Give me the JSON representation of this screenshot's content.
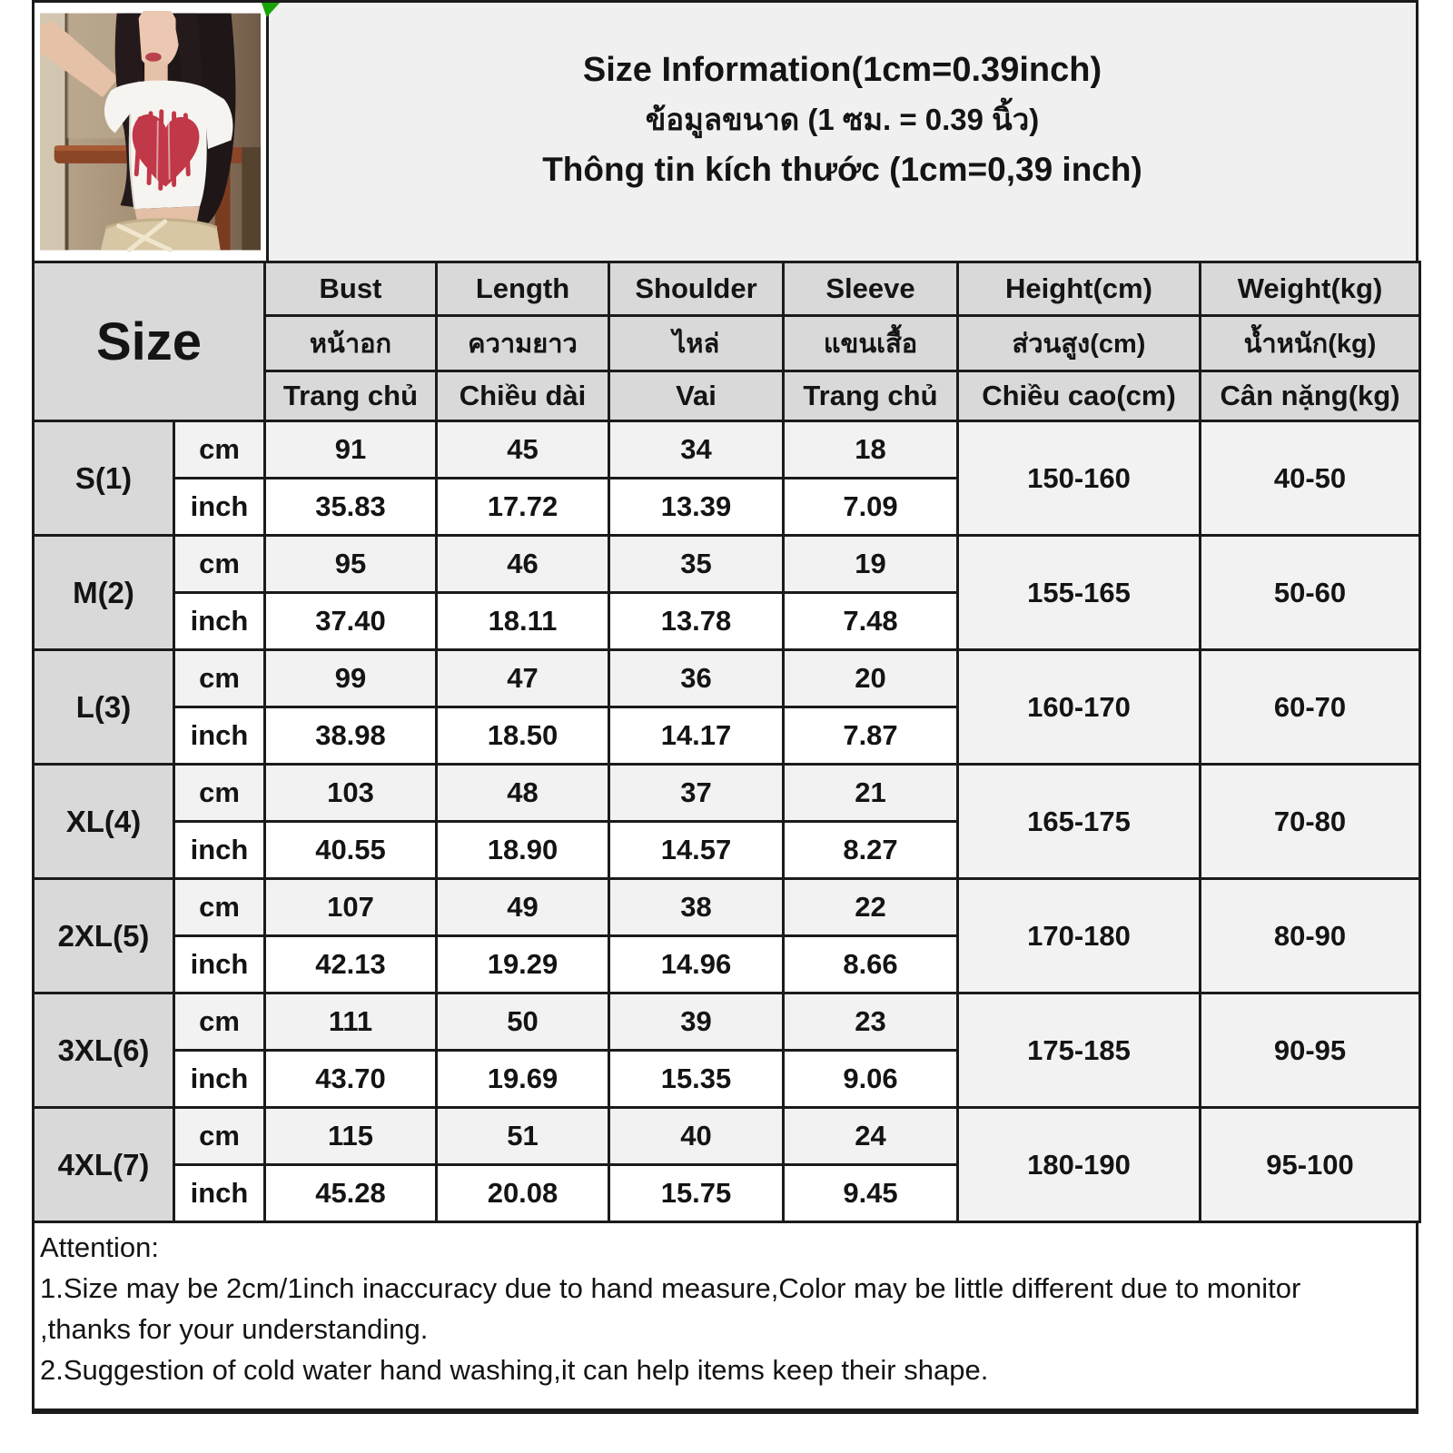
{
  "title": {
    "line1": "Size Information(1cm=0.39inch)",
    "line2": "ข้อมูลขนาด (1 ซม. = 0.39 นิ้ว)",
    "line3": "Thông tin kích thước (1cm=0,39 inch)"
  },
  "photo": {
    "label": "model-wearing-white-crop-top-with-red-heart"
  },
  "table": {
    "size_header": "Size",
    "columns": [
      {
        "en": "Bust",
        "th": "หน้าอก",
        "vi": "Trang chủ"
      },
      {
        "en": "Length",
        "th": "ความยาว",
        "vi": "Chiều dài"
      },
      {
        "en": "Shoulder",
        "th": "ไหล่",
        "vi": "Vai"
      },
      {
        "en": "Sleeve",
        "th": "แขนเสื้อ",
        "vi": "Trang chủ"
      },
      {
        "en": "Height(cm)",
        "th": "ส่วนสูง(cm)",
        "vi": "Chiều cao(cm)"
      },
      {
        "en": "Weight(kg)",
        "th": "น้ำหนัก(kg)",
        "vi": "Cân nặng(kg)"
      }
    ],
    "unit_labels": {
      "cm": "cm",
      "inch": "inch"
    },
    "sizes": [
      {
        "label": "S(1)",
        "cm": [
          "91",
          "45",
          "34",
          "18"
        ],
        "inch": [
          "35.83",
          "17.72",
          "13.39",
          "7.09"
        ],
        "height": "150-160",
        "weight": "40-50"
      },
      {
        "label": "M(2)",
        "cm": [
          "95",
          "46",
          "35",
          "19"
        ],
        "inch": [
          "37.40",
          "18.11",
          "13.78",
          "7.48"
        ],
        "height": "155-165",
        "weight": "50-60"
      },
      {
        "label": "L(3)",
        "cm": [
          "99",
          "47",
          "36",
          "20"
        ],
        "inch": [
          "38.98",
          "18.50",
          "14.17",
          "7.87"
        ],
        "height": "160-170",
        "weight": "60-70"
      },
      {
        "label": "XL(4)",
        "cm": [
          "103",
          "48",
          "37",
          "21"
        ],
        "inch": [
          "40.55",
          "18.90",
          "14.57",
          "8.27"
        ],
        "height": "165-175",
        "weight": "70-80"
      },
      {
        "label": "2XL(5)",
        "cm": [
          "107",
          "49",
          "38",
          "22"
        ],
        "inch": [
          "42.13",
          "19.29",
          "14.96",
          "8.66"
        ],
        "height": "170-180",
        "weight": "80-90"
      },
      {
        "label": "3XL(6)",
        "cm": [
          "111",
          "50",
          "39",
          "23"
        ],
        "inch": [
          "43.70",
          "19.69",
          "15.35",
          "9.06"
        ],
        "height": "175-185",
        "weight": "90-95"
      },
      {
        "label": "4XL(7)",
        "cm": [
          "115",
          "51",
          "40",
          "24"
        ],
        "inch": [
          "45.28",
          "20.08",
          "15.75",
          "9.45"
        ],
        "height": "180-190",
        "weight": "95-100"
      }
    ]
  },
  "attention": {
    "heading": "Attention:",
    "line1": "1.Size may be 2cm/1inch inaccuracy due to hand measure,Color may be little different due to monitor",
    "line2": ",thanks for your understanding.",
    "line3": "2.Suggestion of cold water hand washing,it can help items keep their shape."
  },
  "colors": {
    "border": "#1b1b1b",
    "header_gray": "#d9d9d9",
    "row_gray": "#f2f2f2",
    "title_bg": "#f0f0f0",
    "corner_green": "#18a306",
    "heart_red": "#c13848"
  }
}
